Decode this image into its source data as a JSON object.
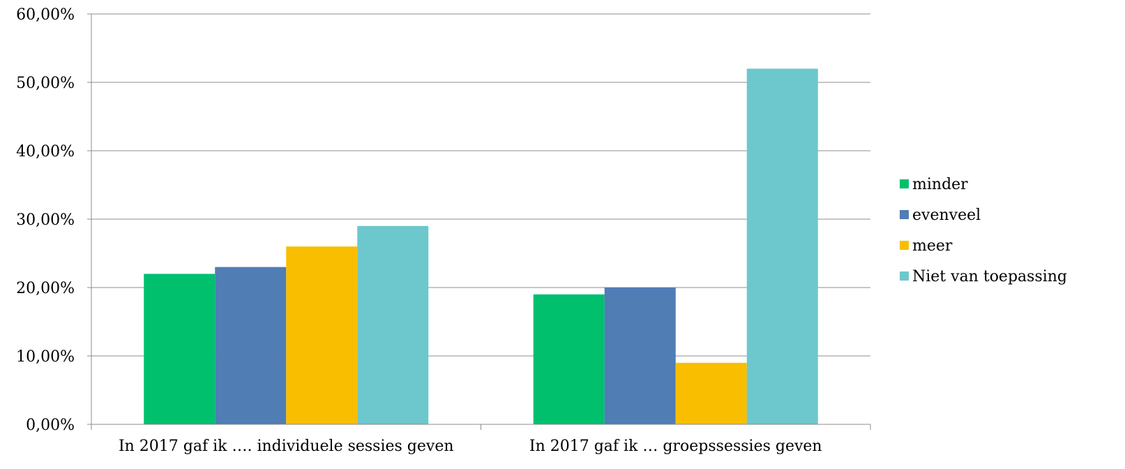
{
  "chart_data": {
    "type": "bar",
    "title": "",
    "xlabel": "",
    "ylabel": "",
    "ylim": [
      0,
      60
    ],
    "y_ticks": [
      "0,00%",
      "10,00%",
      "20,00%",
      "30,00%",
      "40,00%",
      "50,00%",
      "60,00%"
    ],
    "y_tick_values": [
      0,
      10,
      20,
      30,
      40,
      50,
      60
    ],
    "grid": true,
    "legend_position": "right",
    "categories": [
      "In 2017 gaf ik …. individuele sessies geven",
      "In 2017 gaf ik … groepssessies geven"
    ],
    "series": [
      {
        "name": "minder",
        "color": "#00c06e",
        "values": [
          22,
          19
        ]
      },
      {
        "name": "evenveel",
        "color": "#4f7db4",
        "values": [
          23,
          20
        ]
      },
      {
        "name": "meer",
        "color": "#f9be00",
        "values": [
          26,
          9
        ]
      },
      {
        "name": "Niet van toepassing",
        "color": "#6cc8cc",
        "values": [
          29,
          52
        ]
      }
    ]
  }
}
